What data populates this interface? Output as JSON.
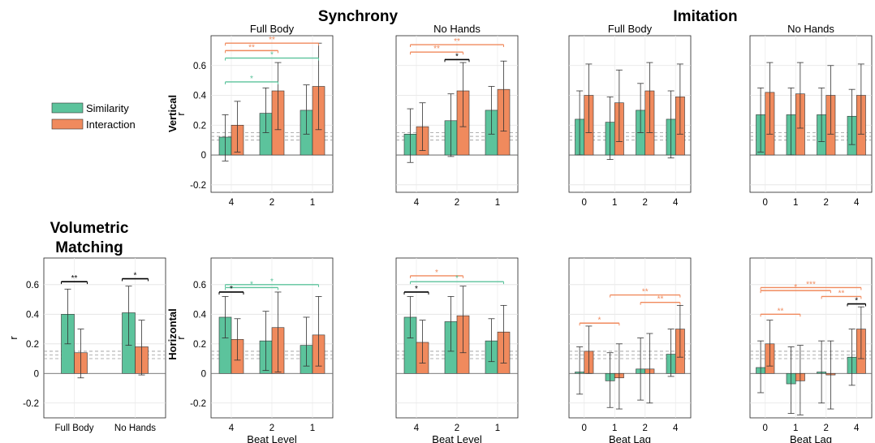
{
  "titles": {
    "synchrony": "Synchrony",
    "imitation": "Imitation",
    "volumetric_line1": "Volumetric",
    "volumetric_line2": "Matching"
  },
  "row_labels": {
    "vertical": "Vertical",
    "horizontal": "Horizontal"
  },
  "legend": {
    "similarity": "Similarity",
    "interaction": "Interaction"
  },
  "colors": {
    "similarity": "#5cc39c",
    "interaction": "#f08a5d",
    "significance_black": "#000000",
    "reference_line": "#9a9a9a"
  },
  "chart_data": [
    {
      "id": "sync-vertical-full",
      "type": "bar",
      "title": "Full Body",
      "ylabel": "r",
      "xlabel": "",
      "ylim": [
        -0.25,
        0.8
      ],
      "yticks": [
        "-0.2",
        "0",
        "0.2",
        "0.4",
        "0.6"
      ],
      "categories": [
        "4",
        "2",
        "1"
      ],
      "series": [
        {
          "name": "Similarity",
          "values": [
            0.12,
            0.28,
            0.3
          ],
          "err_low": [
            -0.04,
            0.15,
            0.14
          ],
          "err_high": [
            0.27,
            0.45,
            0.47
          ]
        },
        {
          "name": "Interaction",
          "values": [
            0.2,
            0.43,
            0.46
          ],
          "err_low": [
            0.02,
            0.17,
            0.17
          ],
          "err_high": [
            0.36,
            0.62,
            0.75
          ]
        }
      ],
      "reference_lines": [
        0.1,
        0.125,
        0.15
      ],
      "significance": [
        {
          "from": 0,
          "to": 2,
          "color": "interaction",
          "y": 0.75,
          "label": "**"
        },
        {
          "from": 0,
          "to": 1,
          "color": "interaction",
          "y": 0.7,
          "label": "**"
        },
        {
          "from": 0,
          "to": 2,
          "color": "similarity",
          "y": 0.65,
          "label": "*"
        },
        {
          "from": 0,
          "to": 1,
          "color": "similarity",
          "y": 0.49,
          "label": "*"
        }
      ]
    },
    {
      "id": "sync-vertical-nohands",
      "type": "bar",
      "title": "No Hands",
      "ylabel": "",
      "xlabel": "",
      "ylim": [
        -0.25,
        0.8
      ],
      "yticks": [],
      "categories": [
        "4",
        "2",
        "1"
      ],
      "series": [
        {
          "name": "Similarity",
          "values": [
            0.14,
            0.23,
            0.3
          ],
          "err_low": [
            -0.05,
            -0.01,
            0.14
          ],
          "err_high": [
            0.31,
            0.41,
            0.46
          ]
        },
        {
          "name": "Interaction",
          "values": [
            0.19,
            0.43,
            0.44
          ],
          "err_low": [
            0.03,
            0.19,
            0.16
          ],
          "err_high": [
            0.35,
            0.62,
            0.63
          ]
        }
      ],
      "reference_lines": [
        0.1,
        0.125,
        0.15
      ],
      "significance": [
        {
          "from": 0,
          "to": 2,
          "color": "interaction",
          "y": 0.74,
          "label": "**"
        },
        {
          "from": 0,
          "to": 1,
          "color": "interaction",
          "y": 0.69,
          "label": "**"
        },
        {
          "from": 1,
          "to": 1,
          "color": "black",
          "y": 0.64,
          "label": "*"
        }
      ]
    },
    {
      "id": "imit-vertical-full",
      "type": "bar",
      "title": "Full Body",
      "ylabel": "",
      "xlabel": "",
      "ylim": [
        -0.25,
        0.8
      ],
      "yticks": [],
      "categories": [
        "0",
        "1",
        "2",
        "4"
      ],
      "series": [
        {
          "name": "Similarity",
          "values": [
            0.24,
            0.22,
            0.3,
            0.24
          ],
          "err_low": [
            0.0,
            -0.03,
            0.15,
            -0.02
          ],
          "err_high": [
            0.43,
            0.39,
            0.48,
            0.43
          ]
        },
        {
          "name": "Interaction",
          "values": [
            0.4,
            0.35,
            0.43,
            0.39
          ],
          "err_low": [
            0.15,
            0.09,
            0.15,
            0.14
          ],
          "err_high": [
            0.61,
            0.57,
            0.62,
            0.61
          ]
        }
      ],
      "reference_lines": [
        0.1,
        0.125,
        0.15
      ],
      "significance": []
    },
    {
      "id": "imit-vertical-nohands",
      "type": "bar",
      "title": "No Hands",
      "ylabel": "",
      "xlabel": "",
      "ylim": [
        -0.25,
        0.8
      ],
      "yticks": [],
      "categories": [
        "0",
        "1",
        "2",
        "4"
      ],
      "series": [
        {
          "name": "Similarity",
          "values": [
            0.27,
            0.27,
            0.27,
            0.26
          ],
          "err_low": [
            0.02,
            0.0,
            0.09,
            0.07
          ],
          "err_high": [
            0.45,
            0.45,
            0.45,
            0.44
          ]
        },
        {
          "name": "Interaction",
          "values": [
            0.42,
            0.41,
            0.4,
            0.4
          ],
          "err_low": [
            0.14,
            0.18,
            0.14,
            0.14
          ],
          "err_high": [
            0.62,
            0.62,
            0.6,
            0.61
          ]
        }
      ],
      "reference_lines": [
        0.1,
        0.125,
        0.15
      ],
      "significance": []
    },
    {
      "id": "volumetric",
      "type": "bar",
      "title": "",
      "ylabel": "r",
      "xlabel": "",
      "ylim": [
        -0.3,
        0.78
      ],
      "yticks": [
        "-0.2",
        "0",
        "0.2",
        "0.4",
        "0.6"
      ],
      "categories": [
        "Full Body",
        "No Hands"
      ],
      "series": [
        {
          "name": "Similarity",
          "values": [
            0.4,
            0.41
          ],
          "err_low": [
            0.2,
            0.19
          ],
          "err_high": [
            0.57,
            0.59
          ]
        },
        {
          "name": "Interaction",
          "values": [
            0.14,
            0.18
          ],
          "err_low": [
            -0.03,
            -0.01
          ],
          "err_high": [
            0.3,
            0.36
          ]
        }
      ],
      "reference_lines": [
        0.1,
        0.125,
        0.15
      ],
      "significance": [
        {
          "from": 0,
          "to": 0,
          "color": "black",
          "y": 0.62,
          "label": "**"
        },
        {
          "from": 1,
          "to": 1,
          "color": "black",
          "y": 0.64,
          "label": "*"
        }
      ]
    },
    {
      "id": "sync-horizontal-full",
      "type": "bar",
      "title": "",
      "ylabel": "r",
      "xlabel": "Beat Level",
      "ylim": [
        -0.3,
        0.78
      ],
      "yticks": [
        "-0.2",
        "0",
        "0.2",
        "0.4",
        "0.6"
      ],
      "categories": [
        "4",
        "2",
        "1"
      ],
      "series": [
        {
          "name": "Similarity",
          "values": [
            0.38,
            0.22,
            0.19
          ],
          "err_low": [
            0.24,
            0.02,
            0.05
          ],
          "err_high": [
            0.52,
            0.42,
            0.38
          ]
        },
        {
          "name": "Interaction",
          "values": [
            0.23,
            0.31,
            0.26
          ],
          "err_low": [
            0.09,
            0.01,
            0.05
          ],
          "err_high": [
            0.37,
            0.55,
            0.52
          ]
        }
      ],
      "reference_lines": [
        0.1,
        0.125,
        0.15
      ],
      "significance": [
        {
          "from": 0,
          "to": 2,
          "color": "similarity",
          "y": 0.6,
          "label": "*"
        },
        {
          "from": 0,
          "to": 1,
          "color": "similarity",
          "y": 0.58,
          "label": "*"
        },
        {
          "from": 0,
          "to": 0,
          "color": "black",
          "y": 0.55,
          "label": "*"
        }
      ]
    },
    {
      "id": "sync-horizontal-nohands",
      "type": "bar",
      "title": "",
      "ylabel": "",
      "xlabel": "Beat Level",
      "ylim": [
        -0.3,
        0.78
      ],
      "yticks": [],
      "categories": [
        "4",
        "2",
        "1"
      ],
      "series": [
        {
          "name": "Similarity",
          "values": [
            0.38,
            0.35,
            0.22
          ],
          "err_low": [
            0.24,
            0.15,
            0.08
          ],
          "err_high": [
            0.52,
            0.52,
            0.37
          ]
        },
        {
          "name": "Interaction",
          "values": [
            0.21,
            0.39,
            0.28
          ],
          "err_low": [
            0.07,
            0.14,
            0.07
          ],
          "err_high": [
            0.36,
            0.59,
            0.46
          ]
        }
      ],
      "reference_lines": [
        0.1,
        0.125,
        0.15
      ],
      "significance": [
        {
          "from": 0,
          "to": 1,
          "color": "interaction",
          "y": 0.66,
          "label": "*"
        },
        {
          "from": 0,
          "to": 2,
          "color": "similarity",
          "y": 0.62,
          "label": "*"
        },
        {
          "from": 0,
          "to": 0,
          "color": "black",
          "y": 0.55,
          "label": "*"
        }
      ]
    },
    {
      "id": "imit-horizontal-full",
      "type": "bar",
      "title": "",
      "ylabel": "",
      "xlabel": "Beat Lag",
      "ylim": [
        -0.3,
        0.78
      ],
      "yticks": [],
      "categories": [
        "0",
        "1",
        "2",
        "4"
      ],
      "series": [
        {
          "name": "Similarity",
          "values": [
            0.01,
            -0.05,
            0.03,
            0.13
          ],
          "err_low": [
            -0.14,
            -0.23,
            -0.18,
            -0.02
          ],
          "err_high": [
            0.18,
            0.14,
            0.24,
            0.3
          ]
        },
        {
          "name": "Interaction",
          "values": [
            0.15,
            -0.03,
            0.03,
            0.3
          ],
          "err_low": [
            0.0,
            -0.24,
            -0.2,
            0.11
          ],
          "err_high": [
            0.32,
            0.2,
            0.27,
            0.46
          ]
        }
      ],
      "reference_lines": [
        0.1,
        0.125,
        0.15
      ],
      "significance": [
        {
          "from": 0,
          "to": 1,
          "color": "interaction",
          "y": 0.34,
          "label": "*"
        },
        {
          "from": 1,
          "to": 3,
          "color": "interaction",
          "y": 0.53,
          "label": "**"
        },
        {
          "from": 2,
          "to": 3,
          "color": "interaction",
          "y": 0.48,
          "label": "**"
        }
      ]
    },
    {
      "id": "imit-horizontal-nohands",
      "type": "bar",
      "title": "",
      "ylabel": "",
      "xlabel": "Beat Lag",
      "ylim": [
        -0.3,
        0.78
      ],
      "yticks": [],
      "categories": [
        "0",
        "1",
        "2",
        "4"
      ],
      "series": [
        {
          "name": "Similarity",
          "values": [
            0.04,
            -0.07,
            0.01,
            0.11
          ],
          "err_low": [
            -0.13,
            -0.27,
            -0.2,
            -0.08
          ],
          "err_high": [
            0.22,
            0.18,
            0.22,
            0.3
          ]
        },
        {
          "name": "Interaction",
          "values": [
            0.2,
            -0.05,
            -0.01,
            0.3
          ],
          "err_low": [
            0.05,
            -0.28,
            -0.24,
            0.1
          ],
          "err_high": [
            0.36,
            0.19,
            0.22,
            0.45
          ]
        }
      ],
      "reference_lines": [
        0.1,
        0.125,
        0.15
      ],
      "significance": [
        {
          "from": 0,
          "to": 3,
          "color": "interaction",
          "y": 0.58,
          "label": "***"
        },
        {
          "from": 0,
          "to": 2,
          "color": "interaction",
          "y": 0.56,
          "label": "*"
        },
        {
          "from": 2,
          "to": 3,
          "color": "interaction",
          "y": 0.52,
          "label": "**"
        },
        {
          "from": 0,
          "to": 1,
          "color": "interaction",
          "y": 0.4,
          "label": "**"
        },
        {
          "from": 3,
          "to": 3,
          "color": "black",
          "y": 0.47,
          "label": "*"
        }
      ]
    }
  ]
}
